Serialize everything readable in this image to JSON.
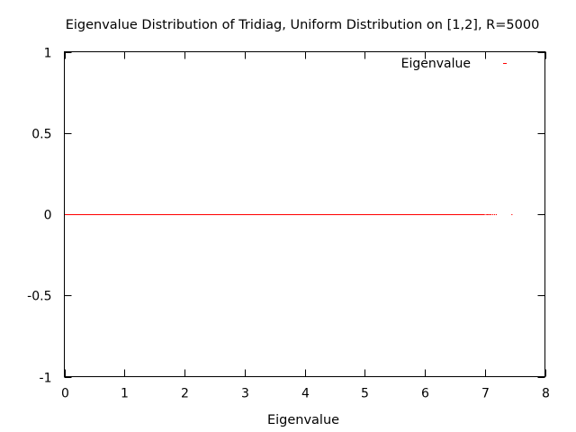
{
  "chart_data": {
    "type": "scatter",
    "title": "Eigenvalue Distribution of Tridiag, Uniform Distribution on [1,2], R=5000",
    "xlabel": "Eigenvalue",
    "ylabel": "",
    "xlim": [
      0,
      8
    ],
    "ylim": [
      -1,
      1
    ],
    "x_ticks": [
      "0",
      "1",
      "2",
      "3",
      "4",
      "5",
      "6",
      "7",
      "8"
    ],
    "y_ticks": [
      "1",
      "0.5",
      "0",
      "-0.5",
      "-1"
    ],
    "grid": false,
    "legend_position": "top-right",
    "series": [
      {
        "name": "Eigenvalue",
        "color": "#ff0000",
        "dense_range": [
          0,
          7.0
        ],
        "x": [
          7.02,
          7.04,
          7.06,
          7.08,
          7.1,
          7.13,
          7.16,
          7.19,
          7.45
        ],
        "y": [
          0,
          0,
          0,
          0,
          0,
          0,
          0,
          0,
          0
        ]
      }
    ]
  }
}
